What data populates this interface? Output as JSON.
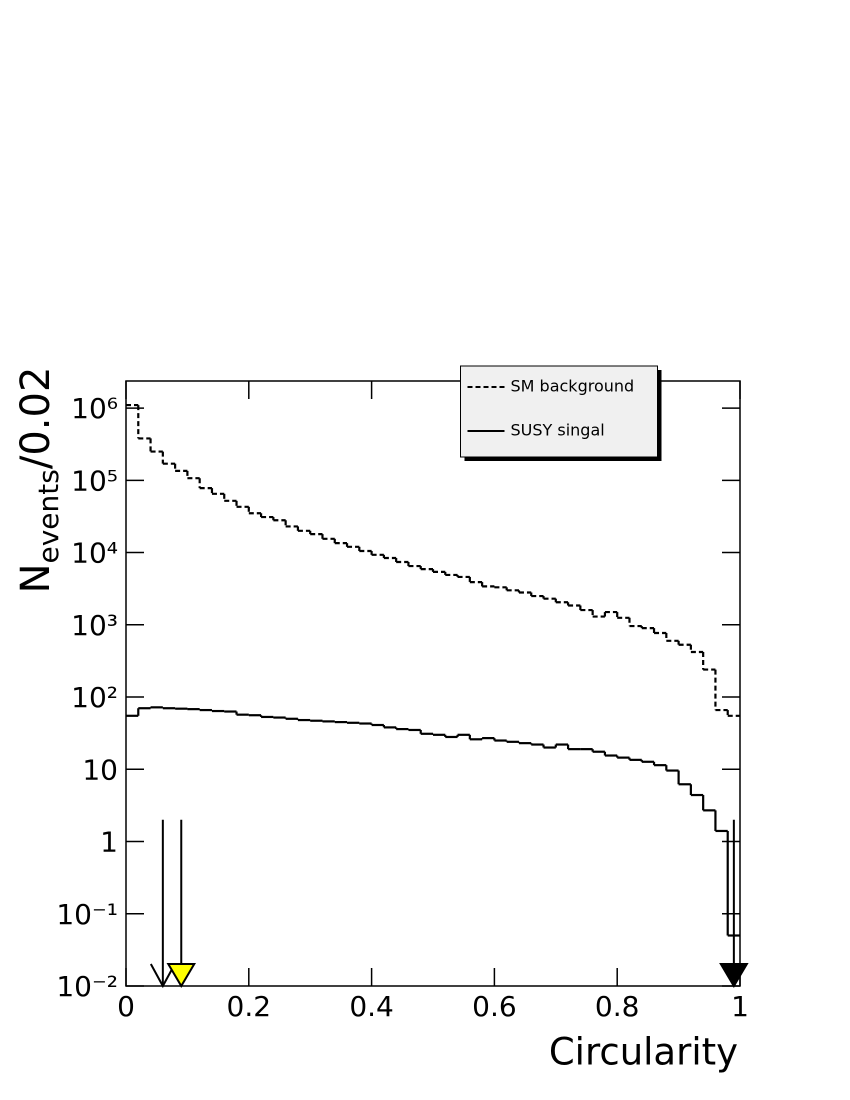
{
  "chart_data": {
    "type": "histogram",
    "xlabel": "Circularity",
    "ylabel_parts": [
      "N",
      "events",
      "/0.02"
    ],
    "bins": [
      0,
      0.02,
      0.04,
      0.06,
      0.08,
      0.1,
      0.12,
      0.14,
      0.16,
      0.18,
      0.2,
      0.22,
      0.24,
      0.26,
      0.28,
      0.3,
      0.32,
      0.34,
      0.36,
      0.38,
      0.4,
      0.42,
      0.44,
      0.46,
      0.48,
      0.5,
      0.52,
      0.54,
      0.56,
      0.58,
      0.6,
      0.62,
      0.64,
      0.66,
      0.68,
      0.7,
      0.72,
      0.74,
      0.76,
      0.78,
      0.8,
      0.82,
      0.84,
      0.86,
      0.88,
      0.9,
      0.92,
      0.94,
      0.96,
      0.98,
      1
    ],
    "series": [
      {
        "name": "SM background",
        "color": "#000000",
        "dashed": true,
        "values": [
          1100000,
          380000,
          250000,
          170000,
          135000,
          107000,
          78000,
          65000,
          52000,
          43000,
          35000,
          31000,
          28000,
          23000,
          20000,
          18000,
          15500,
          13500,
          12000,
          10500,
          9300,
          8400,
          7400,
          6500,
          5900,
          5400,
          4900,
          4600,
          3900,
          3400,
          3300,
          3000,
          2800,
          2500,
          2300,
          2050,
          1850,
          1600,
          1300,
          1500,
          1250,
          960,
          900,
          770,
          600,
          530,
          420,
          240,
          66,
          55
        ]
      },
      {
        "name": "SUSY singal",
        "color": "#000000",
        "dashed": false,
        "values": [
          55,
          70,
          72,
          70,
          69,
          68,
          66,
          64,
          63,
          57,
          56,
          53,
          52,
          50,
          48,
          47,
          46,
          45,
          44,
          43,
          41,
          38,
          36,
          35,
          31,
          30,
          28,
          30,
          26,
          27,
          25,
          24,
          23,
          22,
          20,
          22,
          19,
          19,
          17.5,
          15.5,
          14.5,
          13.5,
          12.7,
          11.4,
          9.6,
          6.2,
          4.4,
          2.7,
          1.4,
          0.05
        ]
      }
    ],
    "cut_arrows": [
      {
        "x": 0.06,
        "y_top": 2,
        "head": "open",
        "color": "#000000"
      },
      {
        "x": 0.09,
        "y_top": 2,
        "head": "filled",
        "color": "#ffff00"
      },
      {
        "x": 0.99,
        "y_top": 2,
        "head": "filled",
        "color": "#000000"
      }
    ],
    "xlim": [
      0,
      1
    ],
    "xticks": [
      0,
      0.2,
      0.4,
      0.6,
      0.8,
      1
    ],
    "ylim": [
      0.01,
      2370000
    ],
    "log_y": true,
    "yticks": [
      {
        "value": 0.01,
        "label": "10⁻²"
      },
      {
        "value": 0.1,
        "label": "10⁻¹"
      },
      1,
      10,
      {
        "value": 100,
        "label": "10²"
      },
      {
        "value": 1000,
        "label": "10³"
      },
      {
        "value": 10000,
        "label": "10⁴"
      },
      {
        "value": 100000,
        "label": "10⁵"
      },
      {
        "value": 1000000,
        "label": "10⁶"
      }
    ],
    "legend": "top"
  }
}
